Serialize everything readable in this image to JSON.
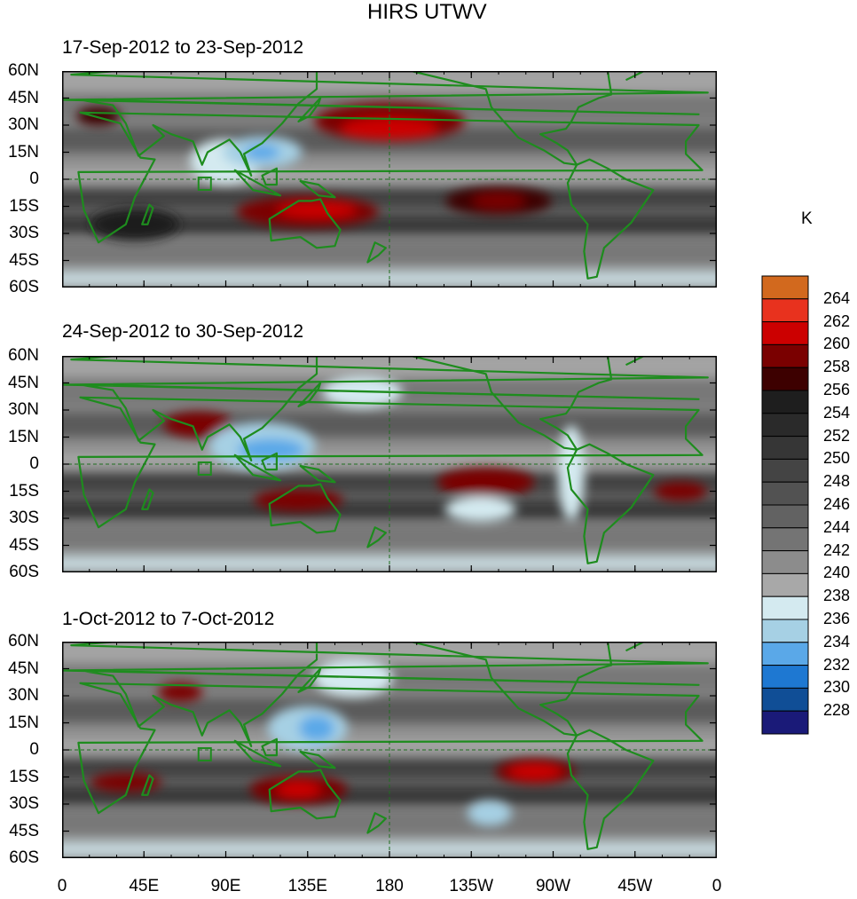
{
  "title": "HIRS UTWV",
  "unit": "K",
  "panels": [
    {
      "title": "17-Sep-2012 to 23-Sep-2012"
    },
    {
      "title": "24-Sep-2012 to 30-Sep-2012"
    },
    {
      "title": "1-Oct-2012 to 7-Oct-2012"
    }
  ],
  "lat_labels": [
    "60N",
    "45N",
    "30N",
    "15N",
    "0",
    "15S",
    "30S",
    "45S",
    "60S"
  ],
  "lon_labels": [
    "0",
    "45E",
    "90E",
    "135E",
    "180",
    "135W",
    "90W",
    "45W",
    "0"
  ],
  "colorbar": {
    "labels": [
      "264",
      "262",
      "260",
      "258",
      "256",
      "254",
      "252",
      "250",
      "248",
      "246",
      "244",
      "242",
      "240",
      "238",
      "236",
      "234",
      "232",
      "230",
      "228"
    ],
    "colors": [
      "#d2691e",
      "#e8321e",
      "#cc0000",
      "#7a0000",
      "#3d0000",
      "#1e1e1e",
      "#2a2a2a",
      "#363636",
      "#444444",
      "#525252",
      "#626262",
      "#747474",
      "#8c8c8c",
      "#a8a8a8",
      "#d4eaf0",
      "#a6d0e4",
      "#5aa8e8",
      "#1e78d2",
      "#104e96",
      "#1a1a78"
    ]
  },
  "colors": {
    "land_outline": "#1e8c1e"
  }
}
